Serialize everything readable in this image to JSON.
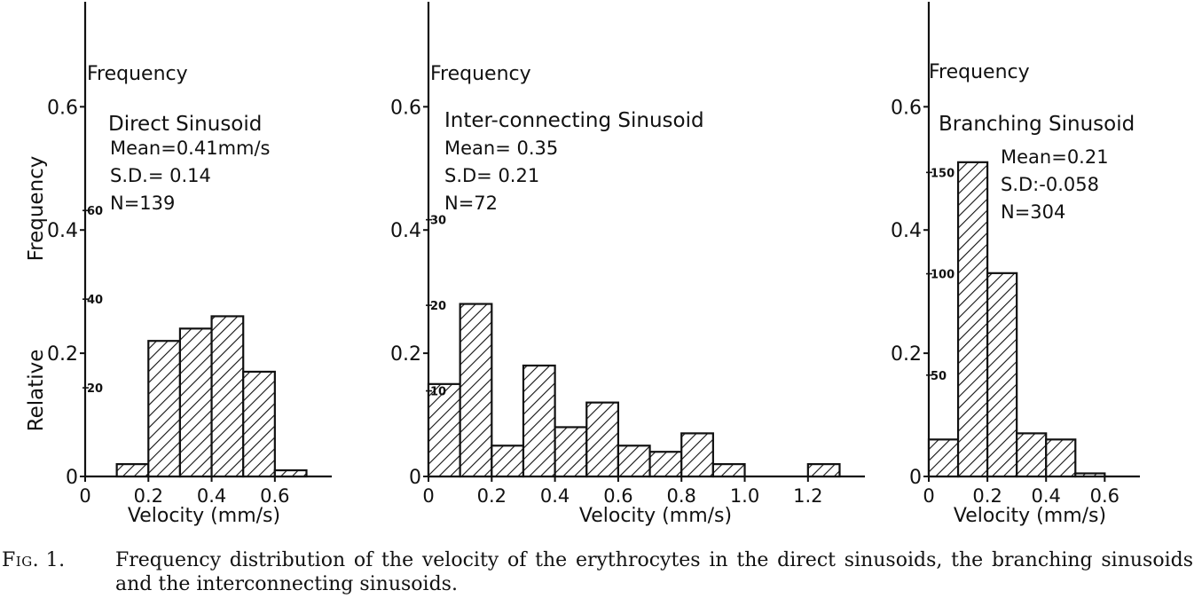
{
  "chart_data": [
    {
      "type": "bar",
      "title": "Direct Sinusoid",
      "stats": [
        "Mean=0.41mm/s",
        "S.D.= 0.14",
        "N=139"
      ],
      "ylabel_top": "Frequency",
      "ylabel_side": "Relative Frequency",
      "xlabel": "Velocity  (mm/s)",
      "xticks": [
        "0",
        "0.2",
        "0.4",
        "0.6"
      ],
      "xtick_values": [
        0,
        0.2,
        0.4,
        0.6
      ],
      "xlim": [
        0,
        0.78
      ],
      "yticks": [
        "0",
        "0.2",
        "0.4",
        "0.6"
      ],
      "ytick_values": [
        0,
        0.2,
        0.4,
        0.6
      ],
      "ylim": [
        0,
        0.72
      ],
      "count_ticks": [
        "20",
        "40",
        "60"
      ],
      "count_tick_values": [
        20,
        40,
        60
      ],
      "count_scale": 139,
      "bins": [
        {
          "x0": 0.1,
          "x1": 0.2,
          "value": 0.02
        },
        {
          "x0": 0.2,
          "x1": 0.3,
          "value": 0.22
        },
        {
          "x0": 0.3,
          "x1": 0.4,
          "value": 0.24
        },
        {
          "x0": 0.4,
          "x1": 0.5,
          "value": 0.26
        },
        {
          "x0": 0.5,
          "x1": 0.6,
          "value": 0.17
        },
        {
          "x0": 0.6,
          "x1": 0.7,
          "value": 0.01
        }
      ]
    },
    {
      "type": "bar",
      "title": "Inter-connecting Sinusoid",
      "stats": [
        "Mean= 0.35",
        "S.D= 0.21",
        "N=72"
      ],
      "ylabel_top": "Frequency",
      "xlabel": "Velocity  (mm/s)",
      "xticks": [
        "0",
        "0.2",
        "0.4",
        "0.6",
        "0.8",
        "1.0",
        "1.2"
      ],
      "xtick_values": [
        0,
        0.2,
        0.4,
        0.6,
        0.8,
        1.0,
        1.2
      ],
      "xlim": [
        0,
        1.38
      ],
      "yticks": [
        "0",
        "0.2",
        "0.4",
        "0.6"
      ],
      "ytick_values": [
        0,
        0.2,
        0.4,
        0.6
      ],
      "ylim": [
        0,
        0.72
      ],
      "count_ticks": [
        "10",
        "20",
        "30"
      ],
      "count_tick_values": [
        10,
        20,
        30
      ],
      "count_scale": 72,
      "bins": [
        {
          "x0": 0.0,
          "x1": 0.1,
          "value": 0.15
        },
        {
          "x0": 0.1,
          "x1": 0.2,
          "value": 0.28
        },
        {
          "x0": 0.2,
          "x1": 0.3,
          "value": 0.05
        },
        {
          "x0": 0.3,
          "x1": 0.4,
          "value": 0.18
        },
        {
          "x0": 0.4,
          "x1": 0.5,
          "value": 0.08
        },
        {
          "x0": 0.5,
          "x1": 0.6,
          "value": 0.12
        },
        {
          "x0": 0.6,
          "x1": 0.7,
          "value": 0.05
        },
        {
          "x0": 0.7,
          "x1": 0.8,
          "value": 0.04
        },
        {
          "x0": 0.8,
          "x1": 0.9,
          "value": 0.07
        },
        {
          "x0": 0.9,
          "x1": 1.0,
          "value": 0.02
        },
        {
          "x0": 1.2,
          "x1": 1.3,
          "value": 0.02
        }
      ]
    },
    {
      "type": "bar",
      "title": "Branching Sinusoid",
      "stats": [
        "Mean=0.21",
        "S.D:-0.058",
        "N=304"
      ],
      "ylabel_top": "Frequency",
      "xlabel": "Velocity (mm/s)",
      "xticks": [
        "0",
        "0.2",
        "0.4",
        "0.6"
      ],
      "xtick_values": [
        0,
        0.2,
        0.4,
        0.6
      ],
      "xlim": [
        0,
        0.72
      ],
      "yticks": [
        "0",
        "0.2",
        "0.4",
        "0.6"
      ],
      "ytick_values": [
        0,
        0.2,
        0.4,
        0.6
      ],
      "ylim": [
        0,
        0.72
      ],
      "count_ticks": [
        "50",
        "100",
        "150"
      ],
      "count_tick_values": [
        50,
        100,
        150
      ],
      "count_scale": 304,
      "bins": [
        {
          "x0": 0.0,
          "x1": 0.1,
          "value": 0.06
        },
        {
          "x0": 0.1,
          "x1": 0.2,
          "value": 0.51
        },
        {
          "x0": 0.2,
          "x1": 0.3,
          "value": 0.33
        },
        {
          "x0": 0.3,
          "x1": 0.4,
          "value": 0.07
        },
        {
          "x0": 0.4,
          "x1": 0.5,
          "value": 0.06
        },
        {
          "x0": 0.5,
          "x1": 0.6,
          "value": 0.005
        }
      ]
    }
  ],
  "caption": {
    "label": "Fig. 1.",
    "text": "Frequency distribution of the velocity of the erythrocytes in the direct sinusoids, the branching sinusoids and the interconnecting sinusoids."
  }
}
